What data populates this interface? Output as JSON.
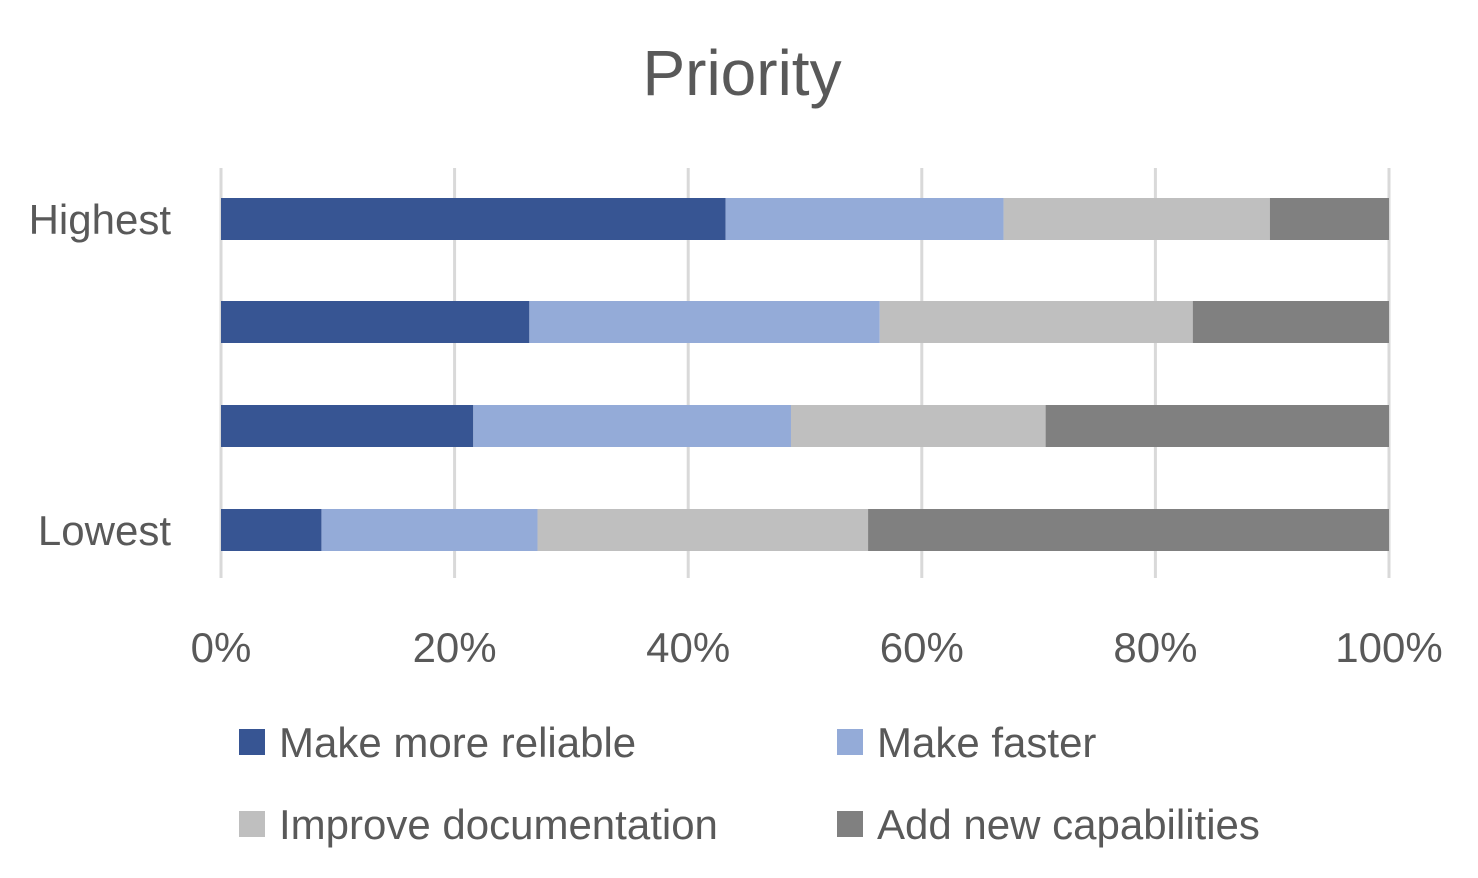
{
  "chart_data": {
    "type": "bar",
    "orientation": "horizontal",
    "stacked": "percent",
    "title": "Priority",
    "xlabel": "",
    "ylabel": "",
    "xlim": [
      0,
      100
    ],
    "x_ticks": [
      "0%",
      "20%",
      "40%",
      "60%",
      "80%",
      "100%"
    ],
    "categories": [
      "Highest",
      "",
      "",
      "Lowest"
    ],
    "series": [
      {
        "name": "Make more reliable",
        "color": "#375593",
        "values": [
          43.2,
          26.4,
          21.6,
          8.6
        ]
      },
      {
        "name": "Make faster",
        "color": "#94abd8",
        "values": [
          23.8,
          30.0,
          27.2,
          18.5
        ]
      },
      {
        "name": "Improve documentation",
        "color": "#bfbfbf",
        "values": [
          22.8,
          26.8,
          21.8,
          28.3
        ]
      },
      {
        "name": "Add new capabilities",
        "color": "#808080",
        "values": [
          10.2,
          16.8,
          29.4,
          44.6
        ]
      }
    ],
    "grid": true,
    "legend_position": "bottom"
  }
}
